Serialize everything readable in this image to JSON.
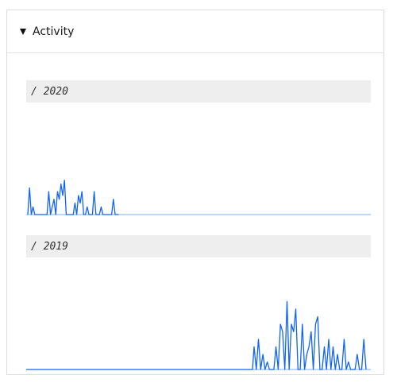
{
  "panel": {
    "title": "Activity",
    "toggle_icon": "triangle-down-icon"
  },
  "colors": {
    "line": "#0f62fe",
    "label_bg": "#eeeeee"
  },
  "chart_data": [
    {
      "type": "line",
      "label": "/ 2020",
      "ylim": [
        0,
        10
      ],
      "x": [
        0,
        1,
        2,
        3,
        4,
        5,
        6,
        7,
        8,
        9,
        10,
        11,
        12,
        13,
        14,
        15,
        16,
        17,
        18,
        19,
        20,
        21,
        22,
        23,
        24,
        25,
        26,
        27,
        28,
        29,
        30,
        31,
        32,
        33,
        34,
        35,
        36,
        37,
        38,
        39,
        40,
        41,
        42,
        43,
        44,
        45,
        46,
        47,
        48,
        49,
        50,
        51,
        52
      ],
      "values": [
        0,
        7,
        0,
        2,
        0,
        0,
        0,
        0,
        0,
        0,
        0,
        0,
        6,
        0,
        2,
        4,
        0,
        6,
        4,
        8,
        5,
        9,
        0,
        0,
        0,
        0,
        0,
        3,
        0,
        5,
        3,
        6,
        0,
        0,
        2,
        0,
        0,
        0,
        6,
        0,
        0,
        0,
        2,
        0,
        0,
        0,
        0,
        0,
        0,
        4,
        0,
        0,
        0
      ]
    },
    {
      "type": "line",
      "label": "/ 2019",
      "ylim": [
        0,
        10
      ],
      "x": [
        0,
        1,
        2,
        3,
        4,
        5,
        6,
        7,
        8,
        9,
        10,
        11,
        12,
        13,
        14,
        15,
        16,
        17,
        18,
        19,
        20,
        21,
        22,
        23,
        24,
        25,
        26,
        27,
        28,
        29,
        30,
        31,
        32,
        33,
        34,
        35,
        36,
        37,
        38,
        39,
        40,
        41,
        42,
        43,
        44,
        45,
        46,
        47,
        48,
        49,
        50,
        51,
        52
      ],
      "values": [
        0,
        0,
        0,
        0,
        0,
        0,
        0,
        0,
        0,
        0,
        0,
        0,
        0,
        0,
        0,
        0,
        0,
        0,
        0,
        0,
        0,
        0,
        0,
        0,
        0,
        0,
        0,
        0,
        0,
        0,
        0,
        0,
        0,
        0,
        0,
        0,
        0,
        0,
        0,
        0,
        0,
        0,
        0,
        0,
        0,
        0,
        0,
        0,
        0,
        0,
        0,
        0,
        0
      ],
      "tail_values": [
        3,
        0,
        4,
        0,
        2,
        0,
        1,
        0,
        0,
        0,
        3,
        0,
        6,
        5,
        0,
        9,
        0,
        6,
        5,
        8,
        0,
        0,
        6,
        0,
        2,
        3,
        5,
        0,
        6,
        7,
        0,
        0,
        3,
        0,
        4,
        0,
        3,
        0,
        2,
        0,
        0,
        4,
        0,
        1,
        0,
        0,
        0,
        2,
        0,
        0,
        4,
        0
      ]
    }
  ]
}
